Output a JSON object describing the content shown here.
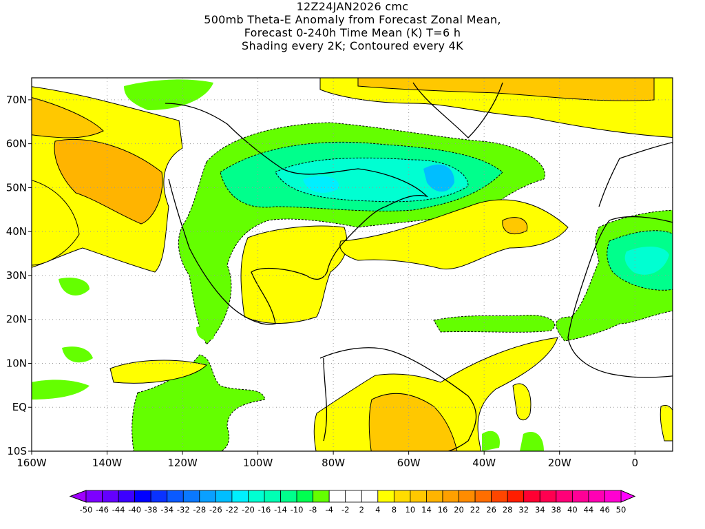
{
  "title": {
    "line1": "12Z24JAN2026 cmc",
    "line2": "500mb Theta-E Anomaly from Forecast Zonal Mean,",
    "line3": "Forecast 0-240h Time Mean (K) T=6 h",
    "line4": "Shading every 2K; Contoured every 4K"
  },
  "map": {
    "lon_labels": [
      "160W",
      "140W",
      "120W",
      "100W",
      "80W",
      "60W",
      "40W",
      "20W",
      "0"
    ],
    "lon_values": [
      -160,
      -140,
      -120,
      -100,
      -80,
      -60,
      -40,
      -20,
      0
    ],
    "lat_labels": [
      "70N",
      "60N",
      "50N",
      "40N",
      "30N",
      "20N",
      "10N",
      "EQ",
      "10S"
    ],
    "lat_values": [
      70,
      60,
      50,
      40,
      30,
      20,
      10,
      0,
      -10
    ],
    "lon_range": [
      -160,
      10
    ],
    "lat_range": [
      -10,
      75
    ]
  },
  "colorbar": {
    "labels": [
      "-50",
      "-46",
      "-44",
      "-40",
      "-38",
      "-34",
      "-32",
      "-28",
      "-26",
      "-22",
      "-20",
      "-16",
      "-14",
      "-10",
      "-8",
      "-4",
      "-2",
      "2",
      "4",
      "8",
      "10",
      "14",
      "16",
      "20",
      "22",
      "26",
      "28",
      "32",
      "34",
      "38",
      "40",
      "44",
      "46",
      "50"
    ],
    "low_color": "#a000ff",
    "high_color": "#ff00ff",
    "colors": [
      "#7d00ff",
      "#6400ff",
      "#3c00ff",
      "#0000ff",
      "#0a32ff",
      "#0a5aff",
      "#0a78ff",
      "#0aa0ff",
      "#00beff",
      "#00f0ff",
      "#00ffd2",
      "#00ffb4",
      "#00ff8c",
      "#00ff50",
      "#64ff00",
      "#ffffff",
      "#ffffff",
      "#ffffff",
      "#ffff00",
      "#ffdc00",
      "#ffc800",
      "#ffb400",
      "#ffa000",
      "#ff8c00",
      "#ff6e00",
      "#ff4600",
      "#ff1e00",
      "#ff0032",
      "#ff0050",
      "#ff0078",
      "#ff0096",
      "#ff00b4",
      "#ff00d2"
    ]
  }
}
